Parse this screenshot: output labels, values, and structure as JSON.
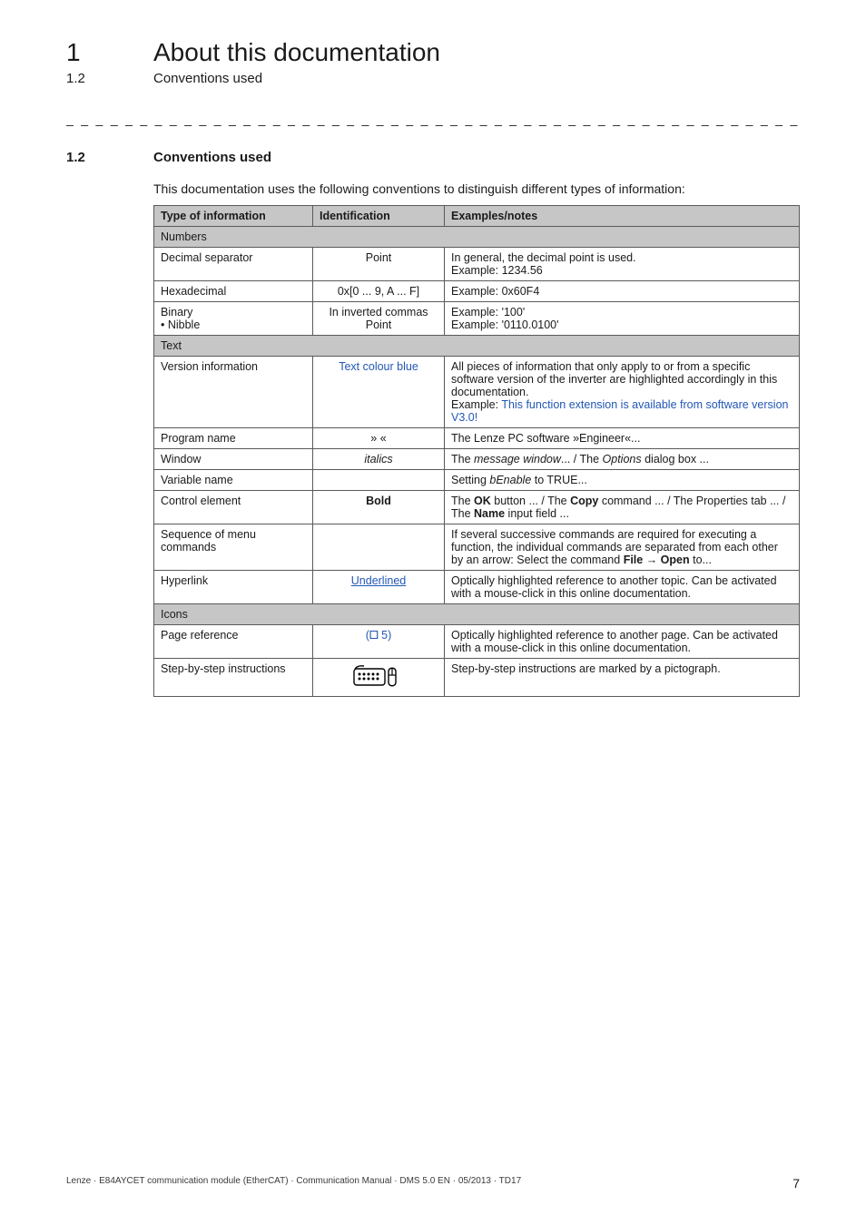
{
  "header": {
    "chapter_num": "1",
    "chapter_title": "About this documentation",
    "section_num_small": "1.2",
    "section_title_small": "Conventions used"
  },
  "dash_rule": "_ _ _ _ _ _ _ _ _ _ _ _ _ _ _ _ _ _ _ _ _ _ _ _ _ _ _ _ _ _ _ _ _ _ _ _ _ _ _ _ _ _ _ _ _ _ _ _ _ _ _ _ _ _ _ _ _ _ _ _ _ _ _",
  "section": {
    "num": "1.2",
    "title": "Conventions used",
    "intro": "This documentation uses the following conventions to distinguish different types of information:"
  },
  "table": {
    "columns": [
      "Type of information",
      "Identification",
      "Examples/notes"
    ],
    "groups": [
      {
        "label": "Numbers",
        "rows": [
          {
            "type": "Decimal separator",
            "ident_plain": "Point",
            "example_plain": "In general, the decimal point is used.\nExample: 1234.56"
          },
          {
            "type": "Hexadecimal",
            "ident_plain": "0x[0 ... 9, A ... F]",
            "example_plain": "Example: 0x60F4"
          },
          {
            "type": "Binary\n • Nibble",
            "ident_plain": "In inverted commas\nPoint",
            "example_plain": "Example: '100'\nExample: '0110.0100'"
          }
        ]
      },
      {
        "label": "Text",
        "rows": [
          {
            "type": "Version information",
            "ident_link": "Text colour blue",
            "example_parts": [
              {
                "t": "All pieces of information that only apply to or from a specific software version of the inverter are highlighted accordingly in this documentation."
              },
              {
                "br": true
              },
              {
                "t": "Example: "
              },
              {
                "link": "This function extension is available from software version V3.0!"
              }
            ]
          },
          {
            "type": "Program name",
            "ident_plain": "» «",
            "example_plain": "The Lenze PC software »Engineer«..."
          },
          {
            "type": "Window",
            "ident_italic": "italics",
            "example_parts": [
              {
                "t": "The "
              },
              {
                "i": "message window"
              },
              {
                "t": "... / The "
              },
              {
                "i": "Options"
              },
              {
                "t": " dialog box ..."
              }
            ]
          },
          {
            "type": "Variable name",
            "ident_plain": "",
            "example_parts": [
              {
                "t": "Setting "
              },
              {
                "i": "bEnable"
              },
              {
                "t": " to TRUE..."
              }
            ]
          },
          {
            "type": "Control element",
            "ident_bold": "Bold",
            "example_parts": [
              {
                "t": "The "
              },
              {
                "b": "OK"
              },
              {
                "t": " button ... / The "
              },
              {
                "b": "Copy"
              },
              {
                "t": " command ... / The Properties tab ... / The "
              },
              {
                "b": "Name"
              },
              {
                "t": " input field ..."
              }
            ]
          },
          {
            "type": "Sequence of menu commands",
            "ident_plain": "",
            "example_parts": [
              {
                "t": "If several successive commands are required for executing a function, the individual commands are separated from each other by an arrow: Select the command "
              },
              {
                "b": "File → Open"
              },
              {
                "t": " to..."
              }
            ]
          },
          {
            "type": "Hyperlink",
            "ident_underline_link": "Underlined",
            "example_plain": "Optically highlighted reference to another topic. Can be activated with a mouse-click in this online documentation."
          }
        ]
      },
      {
        "label": "Icons",
        "rows": [
          {
            "type": "Page reference",
            "ident_pageref": "(🞐 5)",
            "ident_pageref_color": "#2257b5",
            "example_plain": "Optically highlighted reference to another page. Can be activated with a mouse-click in this online documentation."
          },
          {
            "type": "Step-by-step instructions",
            "ident_icon": "mouse",
            "example_plain": "Step-by-step instructions are marked by a pictograph."
          }
        ]
      }
    ]
  },
  "footer": {
    "left": "Lenze · E84AYCET communication module (EtherCAT) · Communication Manual · DMS 5.0 EN · 05/2013 · TD17",
    "page": "7"
  },
  "colors": {
    "link": "#2257b5",
    "header_bg": "#c6c6c6",
    "border": "#5a5a5a",
    "text": "#1a1a1a"
  }
}
